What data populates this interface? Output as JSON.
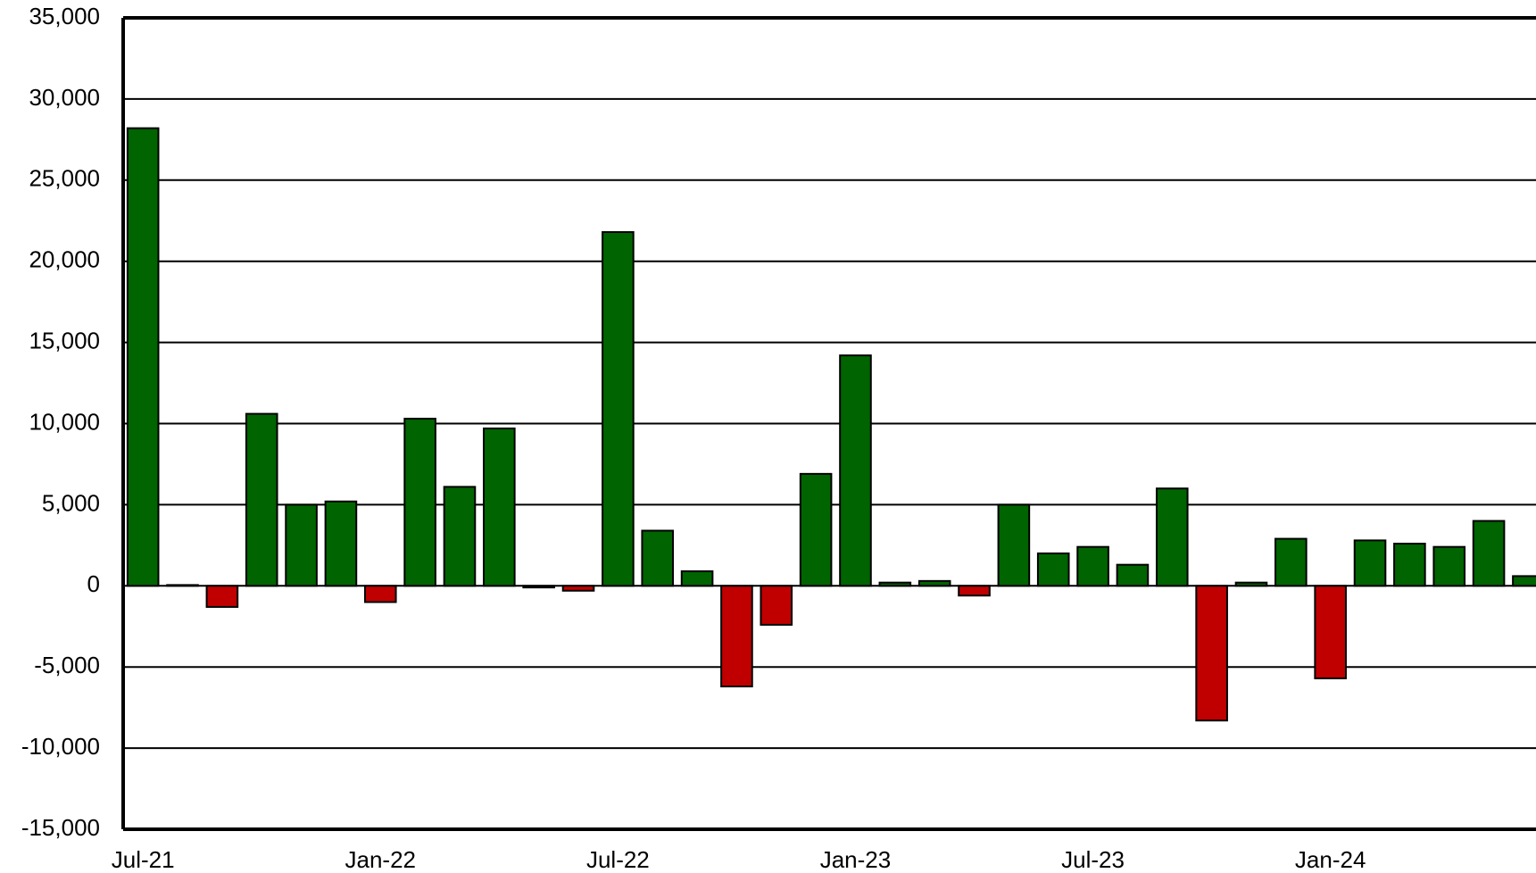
{
  "chart_data": {
    "type": "bar",
    "categories": [
      "Jul-21",
      null,
      null,
      null,
      null,
      null,
      "Jan-22",
      null,
      null,
      null,
      null,
      null,
      "Jul-22",
      null,
      null,
      null,
      null,
      null,
      "Jan-23",
      null,
      null,
      null,
      null,
      null,
      "Jul-23",
      null,
      null,
      null,
      null,
      null,
      "Jan-24",
      null,
      null,
      null,
      null,
      null
    ],
    "values": [
      28200,
      50,
      -1300,
      10600,
      5000,
      5200,
      -1000,
      10300,
      6100,
      9700,
      -100,
      -300,
      21800,
      3400,
      900,
      -6200,
      -2400,
      6900,
      14200,
      200,
      300,
      -600,
      5000,
      2000,
      2400,
      1300,
      6000,
      -8300,
      200,
      2900,
      -5700,
      2800,
      2600,
      2400,
      4000,
      600
    ],
    "color": "#006400",
    "negative_color": "#c00000",
    "ylim": [
      -15000,
      35000
    ],
    "yticks": [
      {
        "value": -15000,
        "label": "-15,000"
      },
      {
        "value": -10000,
        "label": "-10,000"
      },
      {
        "value": -5000,
        "label": "-5,000"
      },
      0,
      {
        "value": 5000,
        "label": "5,000"
      },
      {
        "value": 10000,
        "label": "10,000"
      },
      {
        "value": 15000,
        "label": "15,000"
      },
      {
        "value": 20000,
        "label": "20,000"
      },
      {
        "value": 25000,
        "label": "25,000"
      },
      {
        "value": 30000,
        "label": "30,000"
      },
      {
        "value": 35000,
        "label": "35,000"
      }
    ],
    "grid": true
  }
}
